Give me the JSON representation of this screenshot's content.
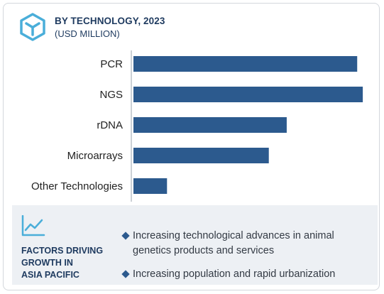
{
  "header": {
    "title": "BY TECHNOLOGY, 2023",
    "subtitle": "(USD MILLION)"
  },
  "chart_data": {
    "type": "bar",
    "orientation": "horizontal",
    "categories": [
      "PCR",
      "NGS",
      "rDNA",
      "Microarrays",
      "Other Technologies"
    ],
    "values": [
      100,
      102.5,
      68.5,
      60.5,
      15
    ],
    "title": "BY TECHNOLOGY, 2023",
    "xlabel": "",
    "ylabel": "",
    "xlim": [
      0,
      105
    ],
    "grid": false,
    "bar_color": "#2c5a8e"
  },
  "factors": {
    "title": "FACTORS DRIVING\nGROWTH IN\nASIA PACIFIC",
    "items": [
      "Increasing technological advances in animal genetics products and services",
      "Increasing population and rapid urbanization"
    ]
  },
  "colors": {
    "accent": "#2c5a8e",
    "heading": "#1e3a5f",
    "icon": "#4aaed9",
    "panel": "#edf0f4"
  },
  "icons": [
    "cube-logo-icon",
    "trend-chart-icon",
    "diamond-bullet-icon"
  ]
}
